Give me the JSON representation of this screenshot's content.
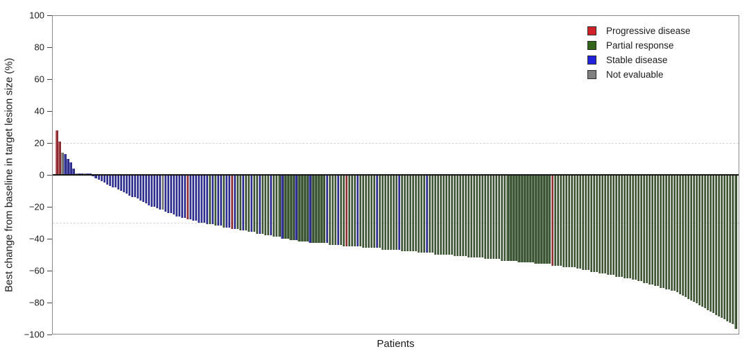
{
  "axes": {
    "ylabel": "Best change from baseline in target lesion size (%)",
    "xlabel": "Patients"
  },
  "legend": {
    "items": [
      {
        "label": "Progressive disease",
        "color": "#cf2127",
        "code": "R"
      },
      {
        "label": "Partial response",
        "color": "#33661a",
        "code": "G"
      },
      {
        "label": "Stable disease",
        "color": "#2222dd",
        "code": "S"
      },
      {
        "label": "Not evaluable",
        "color": "#808080",
        "code": "N"
      }
    ]
  },
  "chart_data": {
    "type": "bar",
    "subtype": "waterfall",
    "title": "",
    "xlabel": "Patients",
    "ylabel": "Best change from baseline in target lesion size (%)",
    "ylim": [
      -100,
      100
    ],
    "yticks": [
      100,
      80,
      60,
      40,
      20,
      0,
      -20,
      -40,
      -60,
      -80,
      -100
    ],
    "reference_lines": [
      20,
      -30
    ],
    "grid": false,
    "legend_position": "top-right-inside",
    "bar_colors": {
      "R": "#9b3136",
      "G": "#415c37",
      "S": "#32329b",
      "N": "#7a7a7a"
    },
    "response_labels": {
      "R": "Progressive disease",
      "G": "Partial response",
      "S": "Stable disease",
      "N": "Not evaluable"
    },
    "values": [
      28,
      21,
      14,
      13,
      10,
      8,
      4,
      0,
      0,
      0,
      0,
      0,
      0,
      -1,
      -2,
      -3,
      -4,
      -5,
      -6,
      -7,
      -8,
      -8,
      -9,
      -10,
      -11,
      -12,
      -13,
      -14,
      -14,
      -15,
      -16,
      -17,
      -18,
      -19,
      -20,
      -20,
      -21,
      -22,
      -22,
      -23,
      -24,
      -24,
      -25,
      -26,
      -26,
      -27,
      -27,
      -28,
      -28,
      -29,
      -29,
      -30,
      -30,
      -30,
      -31,
      -31,
      -31,
      -32,
      -32,
      -32,
      -33,
      -33,
      -33,
      -34,
      -34,
      -34,
      -35,
      -35,
      -35,
      -36,
      -36,
      -36,
      -37,
      -37,
      -37,
      -38,
      -38,
      -38,
      -39,
      -39,
      -39,
      -40,
      -40,
      -40,
      -41,
      -41,
      -41,
      -42,
      -42,
      -42,
      -42,
      -43,
      -43,
      -43,
      -43,
      -43,
      -43,
      -43,
      -44,
      -44,
      -44,
      -44,
      -44,
      -45,
      -45,
      -45,
      -45,
      -45,
      -45,
      -45,
      -46,
      -46,
      -46,
      -46,
      -46,
      -46,
      -46,
      -47,
      -47,
      -47,
      -47,
      -47,
      -47,
      -47,
      -48,
      -48,
      -48,
      -48,
      -48,
      -48,
      -49,
      -49,
      -49,
      -49,
      -49,
      -49,
      -50,
      -50,
      -50,
      -50,
      -50,
      -50,
      -50,
      -51,
      -51,
      -51,
      -51,
      -51,
      -52,
      -52,
      -52,
      -52,
      -52,
      -52,
      -53,
      -53,
      -53,
      -53,
      -53,
      -53,
      -54,
      -54,
      -54,
      -54,
      -54,
      -54,
      -55,
      -55,
      -55,
      -55,
      -55,
      -55,
      -56,
      -56,
      -56,
      -56,
      -56,
      -56,
      -57,
      -57,
      -57,
      -57,
      -58,
      -58,
      -58,
      -58,
      -58,
      -59,
      -59,
      -60,
      -60,
      -60,
      -61,
      -61,
      -61,
      -62,
      -62,
      -62,
      -63,
      -63,
      -63,
      -64,
      -64,
      -64,
      -65,
      -65,
      -65,
      -66,
      -66,
      -67,
      -67,
      -68,
      -68,
      -69,
      -69,
      -70,
      -70,
      -71,
      -71,
      -72,
      -72,
      -73,
      -73,
      -74,
      -75,
      -76,
      -77,
      -78,
      -79,
      -80,
      -81,
      -82,
      -83,
      -84,
      -85,
      -86,
      -87,
      -88,
      -89,
      -90,
      -91,
      -92,
      -93,
      -94,
      -97
    ],
    "response_codes": "RRNSSSSNSSNSSSSSSSSSSSSSSSSSSSSSSSSSSSNSSSSSSSSRSSSSSSSGSGSSGSSRSGGSGGSGGSGGGSGGGSGGGGSGGGGSGGGGGSGGGSGGRGGGSGGGGGGSGGGGGGGSGGGGGGGGGSGGGGGGGGGGGGGGGGGGGGGGGGGGGGGGGGGGGGGGGGGGGGRGGGGGGGGGGGGGGGGGGGGGGGGGGGGGGGGGGGGGGGGGGGGGGGGGGGGGGGGGGGGGGGGG"
  }
}
